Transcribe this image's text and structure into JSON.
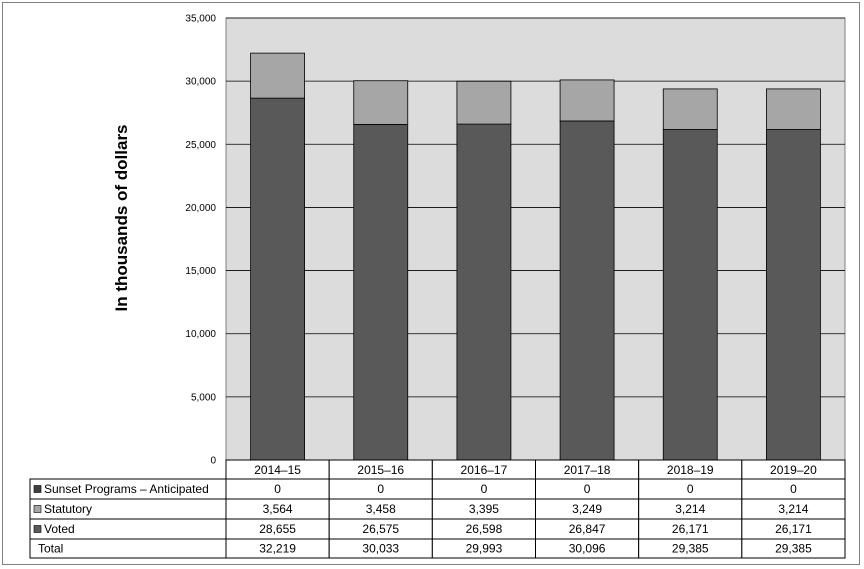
{
  "chart_data": {
    "type": "bar",
    "stacked": true,
    "categories": [
      "2014–15",
      "2015–16",
      "2016–17",
      "2017–18",
      "2018–19",
      "2019–20"
    ],
    "ylabel": "In thousands of dollars",
    "ylim": [
      0,
      35000
    ],
    "yticks": [
      "0",
      "5,000",
      "10,000",
      "15,000",
      "20,000",
      "25,000",
      "30,000",
      "35,000"
    ],
    "ytick_values": [
      0,
      5000,
      10000,
      15000,
      20000,
      25000,
      30000,
      35000
    ],
    "grid": true,
    "series": [
      {
        "name": "Voted",
        "values": [
          28655,
          26575,
          26598,
          26847,
          26171,
          26171
        ],
        "color": "#595959"
      },
      {
        "name": "Statutory",
        "values": [
          3564,
          3458,
          3395,
          3249,
          3214,
          3214
        ],
        "color": "#a6a6a6"
      },
      {
        "name": "Sunset Programs – Anticipated",
        "values": [
          0,
          0,
          0,
          0,
          0,
          0
        ],
        "color": "#404040"
      }
    ],
    "table": {
      "rows": [
        {
          "label": "Sunset Programs – Anticipated",
          "marker_color": "#404040",
          "cells": [
            "0",
            "0",
            "0",
            "0",
            "0",
            "0"
          ]
        },
        {
          "label": "Statutory",
          "marker_color": "#a6a6a6",
          "cells": [
            "3,564",
            "3,458",
            "3,395",
            "3,249",
            "3,214",
            "3,214"
          ]
        },
        {
          "label": "Voted",
          "marker_color": "#595959",
          "cells": [
            "28,655",
            "26,575",
            "26,598",
            "26,847",
            "26,171",
            "26,171"
          ]
        },
        {
          "label": "Total",
          "marker_color": null,
          "cells": [
            "32,219",
            "30,033",
            "29,993",
            "30,096",
            "29,385",
            "29,385"
          ]
        }
      ]
    },
    "plot_background": "#dcdcdc"
  }
}
